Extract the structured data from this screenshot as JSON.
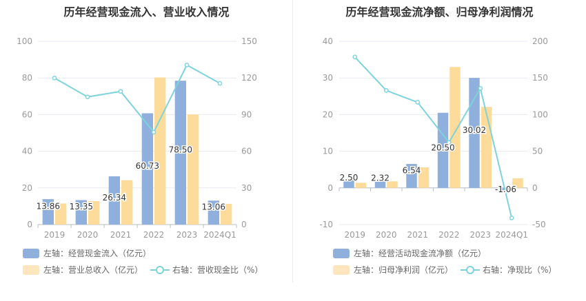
{
  "colors": {
    "bar_blue": "#8fb0dc",
    "bar_yellow": "#fddb9a",
    "line_cyan": "#7dd3dc",
    "axis_text": "#999999",
    "grid": "#e7eaf0"
  },
  "legend_labels": {
    "left_bar1": "左轴：经营现金流入（亿元）",
    "left_bar2": "左轴：营业总收入（亿元）",
    "left_line": "右轴：营收现金比（%）",
    "right_bar1": "左轴：经营活动现金流净额（亿元）",
    "right_bar2": "左轴：归母净利润（亿元）",
    "right_line": "右轴：净现比（%）"
  },
  "chart_data": [
    {
      "type": "bar",
      "title": "历年经营现金流入、营业收入情况",
      "categories": [
        "2019",
        "2020",
        "2021",
        "2022",
        "2023",
        "2024Q1"
      ],
      "y_left_ticks": [
        "0",
        "20",
        "40",
        "60",
        "80",
        "100"
      ],
      "y_right_ticks": [
        "0",
        "30",
        "60",
        "90",
        "120",
        "150"
      ],
      "ylim_left": [
        0,
        100
      ],
      "ylim_right": [
        0,
        150
      ],
      "series": [
        {
          "name": "左轴：经营现金流入（亿元）",
          "axis": "left",
          "kind": "bar",
          "values": [
            13.86,
            13.35,
            26.34,
            60.73,
            78.5,
            13.06
          ],
          "labels": [
            "13.86",
            "13.35",
            "26.34",
            "60.73",
            "78.50",
            "13.06"
          ]
        },
        {
          "name": "左轴：营业总收入（亿元）",
          "axis": "left",
          "kind": "bar",
          "values": [
            11.5,
            12.8,
            24.2,
            80.3,
            60.1,
            11.3
          ]
        },
        {
          "name": "右轴：营收现金比（%）",
          "axis": "right",
          "kind": "line",
          "values": [
            120.0,
            104.5,
            109.0,
            75.6,
            130.6,
            115.6
          ]
        }
      ]
    },
    {
      "type": "bar",
      "title": "历年经营现金流净额、归母净利润情况",
      "categories": [
        "2019",
        "2020",
        "2021",
        "2022",
        "2023",
        "2024Q1"
      ],
      "y_left_ticks": [
        "-10",
        "0",
        "10",
        "20",
        "30",
        "40"
      ],
      "y_right_ticks": [
        "-50",
        "0",
        "50",
        "100",
        "150",
        "200"
      ],
      "ylim_left": [
        -10,
        40
      ],
      "ylim_right": [
        -50,
        200
      ],
      "series": [
        {
          "name": "左轴：经营活动现金流净额（亿元）",
          "axis": "left",
          "kind": "bar",
          "values": [
            2.5,
            2.32,
            6.54,
            20.5,
            30.02,
            -1.06
          ],
          "labels": [
            "2.50",
            "2.32",
            "6.54",
            "20.50",
            "30.02",
            "-1.06"
          ]
        },
        {
          "name": "左轴：归母净利润（亿元）",
          "axis": "left",
          "kind": "bar",
          "values": [
            1.4,
            1.8,
            5.6,
            33.0,
            22.1,
            2.6
          ]
        },
        {
          "name": "右轴：净现比（%）",
          "axis": "right",
          "kind": "line",
          "values": [
            178.6,
            133.0,
            116.8,
            62.1,
            135.8,
            -41.0
          ]
        }
      ]
    }
  ]
}
